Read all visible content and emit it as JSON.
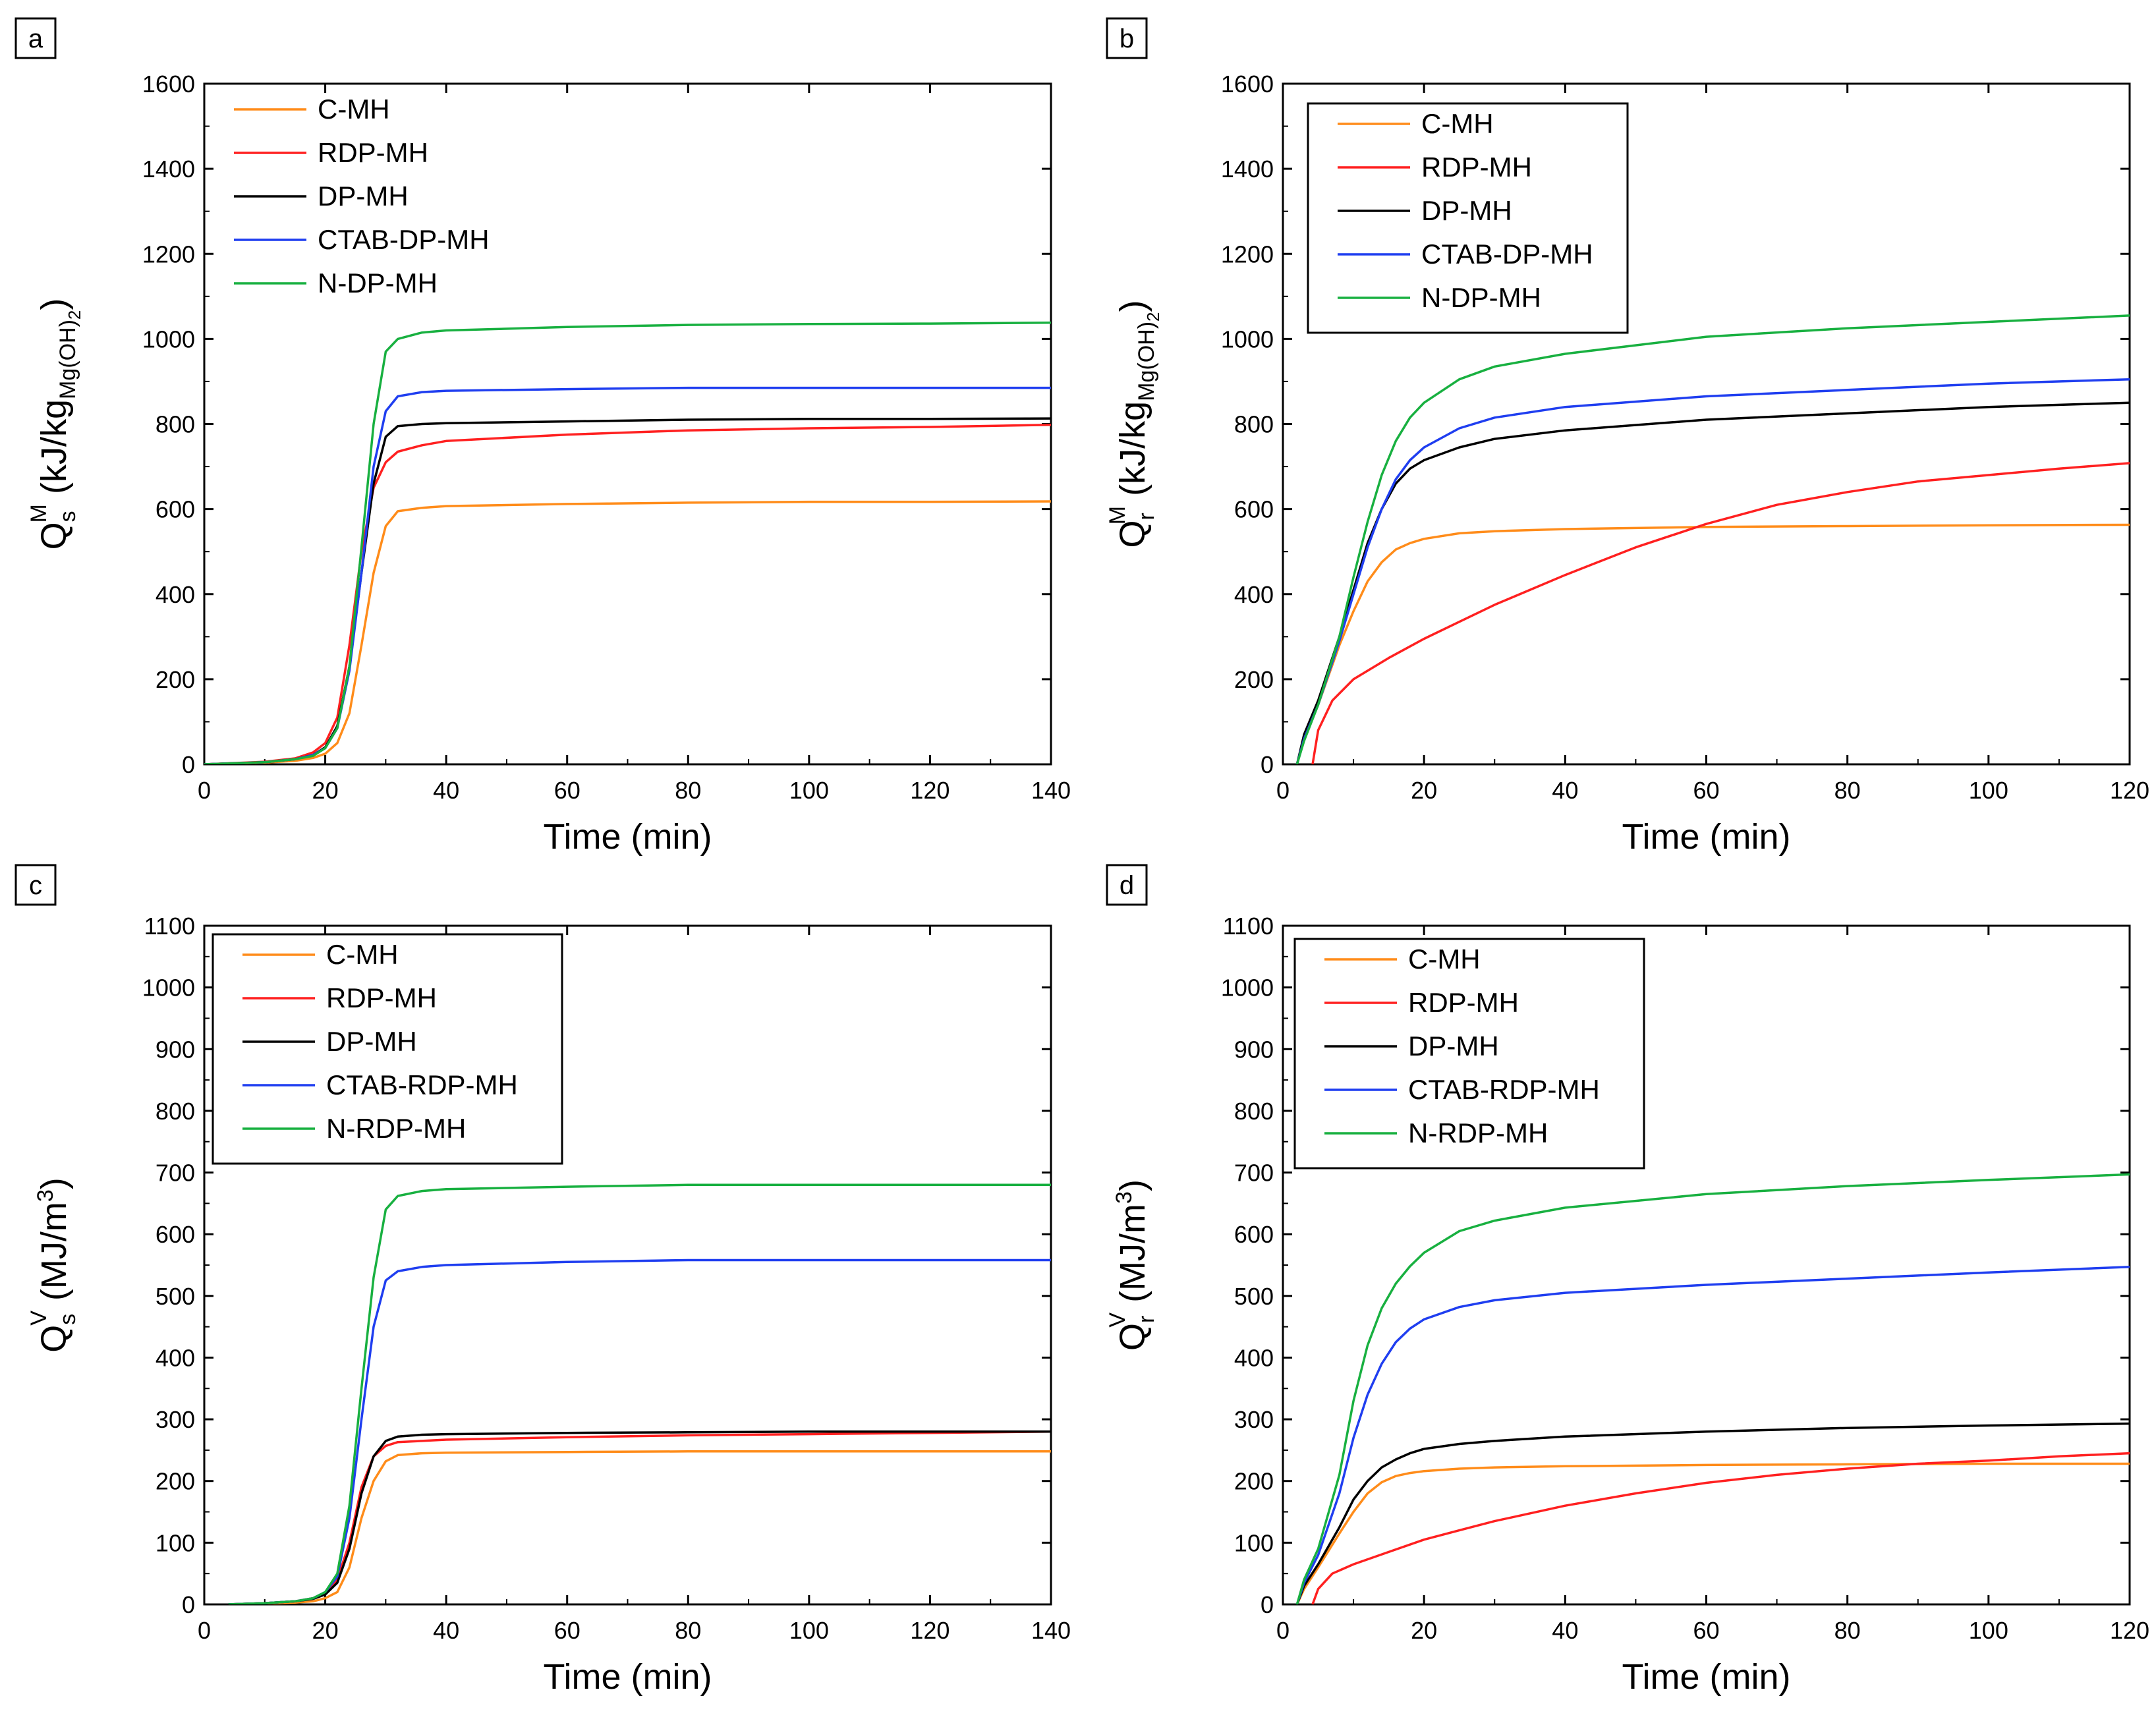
{
  "figure": {
    "panel_count": 4
  },
  "chart_data": [
    {
      "panel": "a",
      "type": "line",
      "ylabel": {
        "main": "Q",
        "sub": "s",
        "sup": "M",
        "unit_prefix": "(kJ/kg",
        "unit_sub": "Mg(OH)",
        "unit_sub2": "2",
        "unit_suffix": ")"
      },
      "xlabel": "Time (min)",
      "xlim": [
        0,
        140
      ],
      "ylim": [
        0,
        1600
      ],
      "xticks": [
        "0",
        "20",
        "40",
        "60",
        "80",
        "100",
        "120",
        "140"
      ],
      "yticks": [
        "0",
        "200",
        "400",
        "600",
        "800",
        "1000",
        "1200",
        "1400",
        "1600"
      ],
      "legend_frame": false,
      "series": [
        {
          "name": "C-MH",
          "color": "#ff8c1a",
          "x": [
            0,
            10,
            15,
            18,
            20,
            22,
            24,
            26,
            28,
            30,
            32,
            36,
            40,
            60,
            80,
            100,
            120,
            140
          ],
          "y": [
            0,
            4,
            8,
            15,
            25,
            50,
            120,
            280,
            450,
            560,
            595,
            603,
            607,
            612,
            615,
            617,
            617,
            618
          ]
        },
        {
          "name": "RDP-MH",
          "color": "#ff2020",
          "x": [
            0,
            10,
            15,
            18,
            20,
            22,
            24,
            26,
            28,
            30,
            32,
            36,
            40,
            60,
            80,
            100,
            120,
            140
          ],
          "y": [
            0,
            6,
            14,
            28,
            50,
            110,
            280,
            500,
            650,
            710,
            735,
            750,
            760,
            775,
            785,
            790,
            793,
            798
          ]
        },
        {
          "name": "DP-MH",
          "color": "#000000",
          "x": [
            0,
            10,
            15,
            18,
            20,
            22,
            24,
            26,
            28,
            30,
            32,
            36,
            40,
            60,
            80,
            100,
            120,
            140
          ],
          "y": [
            0,
            5,
            12,
            22,
            40,
            90,
            230,
            450,
            660,
            770,
            795,
            800,
            802,
            806,
            810,
            812,
            812,
            813
          ]
        },
        {
          "name": "CTAB-DP-MH",
          "color": "#1f3ef0",
          "x": [
            0,
            10,
            15,
            18,
            20,
            22,
            24,
            26,
            28,
            30,
            32,
            36,
            40,
            60,
            80,
            100,
            120,
            140
          ],
          "y": [
            0,
            5,
            12,
            22,
            38,
            85,
            220,
            450,
            700,
            830,
            865,
            875,
            878,
            882,
            885,
            885,
            885,
            885
          ]
        },
        {
          "name": "N-DP-MH",
          "color": "#18b040",
          "x": [
            0,
            10,
            15,
            18,
            20,
            22,
            24,
            26,
            28,
            30,
            32,
            36,
            40,
            60,
            80,
            100,
            120,
            140
          ],
          "y": [
            0,
            5,
            12,
            20,
            38,
            85,
            230,
            510,
            800,
            970,
            1000,
            1015,
            1020,
            1028,
            1033,
            1035,
            1036,
            1038
          ]
        }
      ]
    },
    {
      "panel": "b",
      "type": "line",
      "ylabel": {
        "main": "Q",
        "sub": "r",
        "sup": "M",
        "unit_prefix": "(kJ/kg",
        "unit_sub": "Mg(OH)",
        "unit_sub2": "2",
        "unit_suffix": ")"
      },
      "xlabel": "Time (min)",
      "xlim": [
        0,
        120
      ],
      "ylim": [
        0,
        1600
      ],
      "xticks": [
        "0",
        "20",
        "40",
        "60",
        "80",
        "100",
        "120"
      ],
      "yticks": [
        "0",
        "200",
        "400",
        "600",
        "800",
        "1000",
        "1200",
        "1400",
        "1600"
      ],
      "legend_frame": true,
      "series": [
        {
          "name": "C-MH",
          "color": "#ff8c1a",
          "x": [
            2,
            3,
            5,
            8,
            10,
            12,
            14,
            16,
            18,
            20,
            25,
            30,
            40,
            60,
            80,
            100,
            120
          ],
          "y": [
            0,
            60,
            140,
            280,
            360,
            430,
            475,
            505,
            520,
            530,
            543,
            548,
            553,
            558,
            560,
            562,
            563
          ]
        },
        {
          "name": "RDP-MH",
          "color": "#ff2020",
          "x": [
            4.2,
            5,
            7,
            10,
            15,
            20,
            25,
            30,
            40,
            50,
            60,
            70,
            80,
            90,
            100,
            110,
            120
          ],
          "y": [
            0,
            80,
            150,
            200,
            250,
            295,
            335,
            375,
            445,
            510,
            565,
            610,
            640,
            665,
            680,
            695,
            708
          ]
        },
        {
          "name": "DP-MH",
          "color": "#000000",
          "x": [
            2,
            3,
            5,
            8,
            10,
            12,
            14,
            16,
            18,
            20,
            25,
            30,
            40,
            60,
            80,
            100,
            120
          ],
          "y": [
            0,
            70,
            150,
            300,
            410,
            520,
            600,
            660,
            695,
            715,
            745,
            765,
            785,
            810,
            825,
            840,
            850
          ]
        },
        {
          "name": "CTAB-DP-MH",
          "color": "#1f3ef0",
          "x": [
            2,
            3,
            5,
            8,
            10,
            12,
            14,
            16,
            18,
            20,
            25,
            30,
            40,
            60,
            80,
            100,
            120
          ],
          "y": [
            0,
            60,
            140,
            290,
            400,
            510,
            600,
            670,
            715,
            745,
            790,
            815,
            840,
            865,
            880,
            895,
            905
          ]
        },
        {
          "name": "N-DP-MH",
          "color": "#18b040",
          "x": [
            2,
            3,
            5,
            8,
            10,
            12,
            14,
            16,
            18,
            20,
            25,
            30,
            40,
            60,
            80,
            100,
            120
          ],
          "y": [
            0,
            55,
            140,
            300,
            440,
            570,
            680,
            760,
            815,
            850,
            905,
            935,
            965,
            1005,
            1025,
            1040,
            1055
          ]
        }
      ]
    },
    {
      "panel": "c",
      "type": "line",
      "ylabel": {
        "main": "Q",
        "sub": "s",
        "sup": "V",
        "unit_prefix": "(MJ/m",
        "unit_sup": "3",
        "unit_suffix": ")"
      },
      "xlabel": "Time (min)",
      "xlim": [
        0,
        140
      ],
      "ylim": [
        0,
        1100
      ],
      "xticks": [
        "0",
        "20",
        "40",
        "60",
        "80",
        "100",
        "120",
        "140"
      ],
      "yticks": [
        "0",
        "100",
        "200",
        "300",
        "400",
        "500",
        "600",
        "700",
        "800",
        "900",
        "1000",
        "1100"
      ],
      "legend_frame": true,
      "series": [
        {
          "name": "C-MH",
          "color": "#ff8c1a",
          "x": [
            4,
            10,
            15,
            18,
            20,
            22,
            24,
            26,
            28,
            30,
            32,
            36,
            40,
            60,
            80,
            100,
            120,
            140
          ],
          "y": [
            0,
            1,
            3,
            5,
            10,
            20,
            60,
            140,
            200,
            232,
            242,
            245,
            246,
            247,
            248,
            248,
            248,
            248
          ]
        },
        {
          "name": "RDP-MH",
          "color": "#ff2020",
          "x": [
            4,
            10,
            15,
            18,
            20,
            22,
            24,
            26,
            28,
            30,
            32,
            36,
            40,
            60,
            80,
            100,
            120,
            140
          ],
          "y": [
            0,
            2,
            5,
            10,
            18,
            40,
            100,
            190,
            240,
            257,
            263,
            265,
            267,
            271,
            274,
            276,
            278,
            280
          ]
        },
        {
          "name": "DP-MH",
          "color": "#000000",
          "x": [
            4,
            10,
            15,
            18,
            20,
            22,
            24,
            26,
            28,
            30,
            32,
            36,
            40,
            60,
            80,
            100,
            120,
            140
          ],
          "y": [
            0,
            2,
            5,
            9,
            16,
            35,
            90,
            180,
            240,
            265,
            272,
            275,
            276,
            278,
            279,
            280,
            280,
            280
          ]
        },
        {
          "name": "CTAB-RDP-MH",
          "color": "#1f3ef0",
          "x": [
            4,
            10,
            15,
            18,
            20,
            22,
            24,
            26,
            28,
            30,
            32,
            36,
            40,
            60,
            80,
            100,
            120,
            140
          ],
          "y": [
            0,
            2,
            5,
            10,
            20,
            45,
            140,
            300,
            450,
            525,
            540,
            547,
            550,
            555,
            558,
            558,
            558,
            558
          ]
        },
        {
          "name": "N-RDP-MH",
          "color": "#18b040",
          "x": [
            4,
            10,
            15,
            18,
            20,
            22,
            24,
            26,
            28,
            30,
            32,
            36,
            40,
            60,
            80,
            100,
            120,
            140
          ],
          "y": [
            0,
            2,
            5,
            10,
            20,
            50,
            160,
            350,
            530,
            640,
            662,
            670,
            673,
            677,
            680,
            680,
            680,
            680
          ]
        }
      ]
    },
    {
      "panel": "d",
      "type": "line",
      "ylabel": {
        "main": "Q",
        "sub": "r",
        "sup": "V",
        "unit_prefix": "(MJ/m",
        "unit_sup": "3",
        "unit_suffix": ")"
      },
      "xlabel": "Time (min)",
      "xlim": [
        0,
        120
      ],
      "ylim": [
        0,
        1100
      ],
      "xticks": [
        "0",
        "20",
        "40",
        "60",
        "80",
        "100",
        "120"
      ],
      "yticks": [
        "0",
        "100",
        "200",
        "300",
        "400",
        "500",
        "600",
        "700",
        "800",
        "900",
        "1000",
        "1100"
      ],
      "legend_frame": true,
      "series": [
        {
          "name": "C-MH",
          "color": "#ff8c1a",
          "x": [
            2,
            3,
            5,
            8,
            10,
            12,
            14,
            16,
            18,
            20,
            25,
            30,
            40,
            60,
            80,
            100,
            120
          ],
          "y": [
            0,
            25,
            60,
            115,
            150,
            180,
            198,
            208,
            213,
            216,
            220,
            222,
            224,
            226,
            227,
            228,
            228
          ]
        },
        {
          "name": "RDP-MH",
          "color": "#ff2020",
          "x": [
            4.2,
            5,
            7,
            10,
            15,
            20,
            25,
            30,
            40,
            50,
            60,
            70,
            80,
            90,
            100,
            110,
            120
          ],
          "y": [
            0,
            25,
            50,
            65,
            85,
            105,
            120,
            135,
            160,
            180,
            197,
            210,
            220,
            228,
            233,
            240,
            245
          ]
        },
        {
          "name": "DP-MH",
          "color": "#000000",
          "x": [
            2,
            3,
            5,
            8,
            10,
            12,
            14,
            16,
            18,
            20,
            25,
            30,
            40,
            60,
            80,
            100,
            120
          ],
          "y": [
            0,
            30,
            65,
            125,
            170,
            200,
            222,
            235,
            245,
            252,
            260,
            265,
            272,
            280,
            286,
            290,
            293
          ]
        },
        {
          "name": "CTAB-RDP-MH",
          "color": "#1f3ef0",
          "x": [
            2,
            3,
            5,
            8,
            10,
            12,
            14,
            16,
            18,
            20,
            25,
            30,
            40,
            60,
            80,
            100,
            120
          ],
          "y": [
            0,
            35,
            80,
            180,
            270,
            340,
            390,
            425,
            447,
            462,
            482,
            493,
            505,
            518,
            528,
            538,
            547
          ]
        },
        {
          "name": "N-RDP-MH",
          "color": "#18b040",
          "x": [
            2,
            3,
            5,
            8,
            10,
            12,
            14,
            16,
            18,
            20,
            25,
            30,
            40,
            60,
            80,
            100,
            120
          ],
          "y": [
            0,
            40,
            90,
            210,
            330,
            420,
            480,
            520,
            548,
            570,
            605,
            622,
            643,
            665,
            678,
            688,
            697
          ]
        }
      ]
    }
  ]
}
